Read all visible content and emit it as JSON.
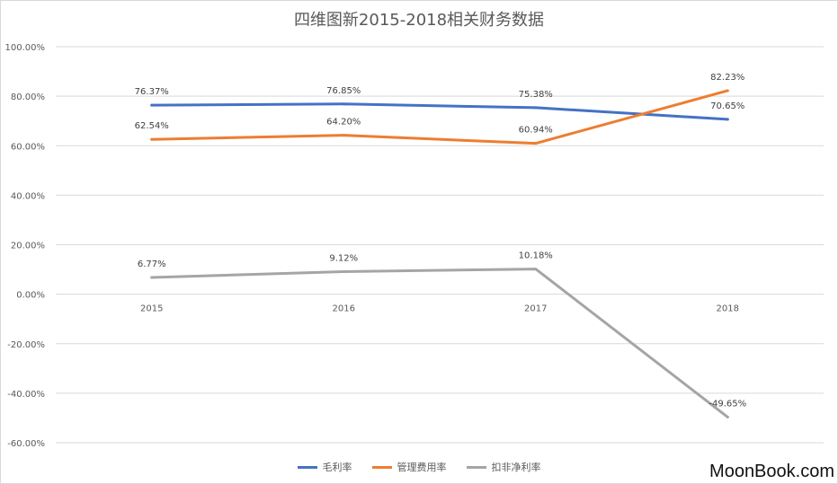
{
  "chart_data": {
    "type": "line",
    "title": "四维图新2015-2018相关财务数据",
    "categories": [
      "2015",
      "2016",
      "2017",
      "2018"
    ],
    "yticks": [
      "100.00%",
      "80.00%",
      "60.00%",
      "40.00%",
      "20.00%",
      "0.00%",
      "-20.00%",
      "-40.00%",
      "-60.00%"
    ],
    "ylim": [
      -60,
      100
    ],
    "grid": true,
    "legend_position": "bottom",
    "series": [
      {
        "name": "毛利率",
        "color": "#4472c4",
        "values": [
          76.37,
          76.85,
          75.38,
          70.65
        ],
        "labels": [
          "76.37%",
          "76.85%",
          "75.38%",
          "70.65%"
        ]
      },
      {
        "name": "管理费用率",
        "color": "#ed7d31",
        "values": [
          62.54,
          64.2,
          60.94,
          82.23
        ],
        "labels": [
          "62.54%",
          "64.20%",
          "60.94%",
          "82.23%"
        ]
      },
      {
        "name": "扣非净利率",
        "color": "#a5a5a5",
        "values": [
          6.77,
          9.12,
          10.18,
          -49.65
        ],
        "labels": [
          "6.77%",
          "9.12%",
          "10.18%",
          "-49.65%"
        ]
      }
    ]
  },
  "watermark": "MoonBook.com"
}
